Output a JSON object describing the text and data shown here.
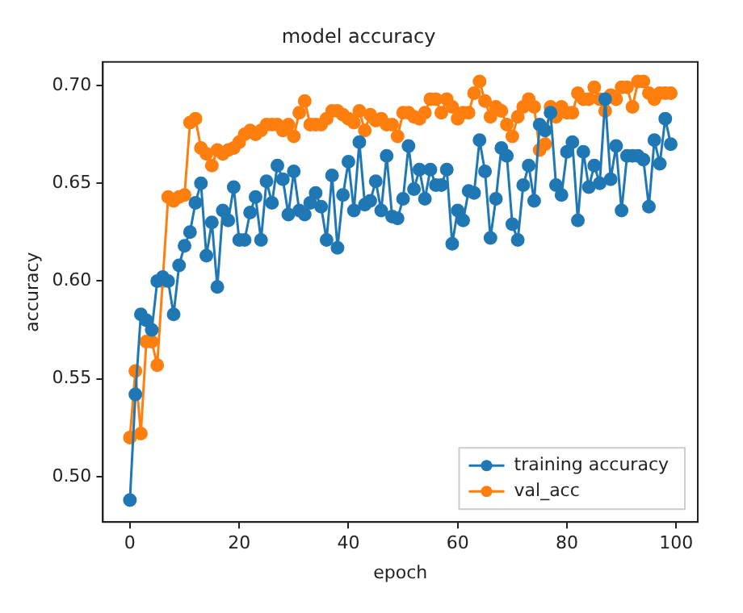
{
  "chart_data": {
    "type": "line",
    "title": "model accuracy",
    "xlabel": "epoch",
    "ylabel": "accuracy",
    "x": [
      0,
      1,
      2,
      3,
      4,
      5,
      6,
      7,
      8,
      9,
      10,
      11,
      12,
      13,
      14,
      15,
      16,
      17,
      18,
      19,
      20,
      21,
      22,
      23,
      24,
      25,
      26,
      27,
      28,
      29,
      30,
      31,
      32,
      33,
      34,
      35,
      36,
      37,
      38,
      39,
      40,
      41,
      42,
      43,
      44,
      45,
      46,
      47,
      48,
      49,
      50,
      51,
      52,
      53,
      54,
      55,
      56,
      57,
      58,
      59,
      60,
      61,
      62,
      63,
      64,
      65,
      66,
      67,
      68,
      69,
      70,
      71,
      72,
      73,
      74,
      75,
      76,
      77,
      78,
      79,
      80,
      81,
      82,
      83,
      84,
      85,
      86,
      87,
      88,
      89,
      90,
      91,
      92,
      93,
      94,
      95,
      96,
      97,
      98,
      99
    ],
    "series": [
      {
        "name": "training accuracy",
        "color": "#1f77b4",
        "values": [
          0.488,
          0.542,
          0.583,
          0.58,
          0.575,
          0.6,
          0.602,
          0.6,
          0.583,
          0.608,
          0.618,
          0.625,
          0.64,
          0.65,
          0.613,
          0.63,
          0.597,
          0.636,
          0.631,
          0.648,
          0.621,
          0.621,
          0.635,
          0.643,
          0.621,
          0.651,
          0.64,
          0.659,
          0.652,
          0.634,
          0.656,
          0.636,
          0.634,
          0.64,
          0.645,
          0.638,
          0.621,
          0.654,
          0.617,
          0.644,
          0.661,
          0.636,
          0.671,
          0.639,
          0.641,
          0.651,
          0.636,
          0.664,
          0.633,
          0.632,
          0.642,
          0.669,
          0.647,
          0.657,
          0.642,
          0.657,
          0.649,
          0.649,
          0.657,
          0.619,
          0.636,
          0.631,
          0.646,
          0.645,
          0.672,
          0.656,
          0.622,
          0.642,
          0.668,
          0.664,
          0.629,
          0.621,
          0.649,
          0.659,
          0.641,
          0.68,
          0.677,
          0.686,
          0.649,
          0.644,
          0.666,
          0.671,
          0.631,
          0.666,
          0.648,
          0.659,
          0.65,
          0.693,
          0.652,
          0.669,
          0.636,
          0.664,
          0.664,
          0.664,
          0.662,
          0.638,
          0.672,
          0.66,
          0.683,
          0.67
        ]
      },
      {
        "name": "val_acc",
        "color": "#ff7f0e",
        "values": [
          0.52,
          0.554,
          0.522,
          0.569,
          0.569,
          0.557,
          0.6,
          0.643,
          0.641,
          0.643,
          0.644,
          0.681,
          0.683,
          0.668,
          0.665,
          0.659,
          0.667,
          0.665,
          0.667,
          0.668,
          0.671,
          0.675,
          0.677,
          0.675,
          0.677,
          0.68,
          0.68,
          0.68,
          0.677,
          0.68,
          0.674,
          0.686,
          0.692,
          0.68,
          0.68,
          0.68,
          0.683,
          0.687,
          0.687,
          0.685,
          0.683,
          0.681,
          0.687,
          0.677,
          0.685,
          0.682,
          0.683,
          0.68,
          0.68,
          0.674,
          0.686,
          0.686,
          0.684,
          0.683,
          0.686,
          0.693,
          0.693,
          0.686,
          0.693,
          0.689,
          0.683,
          0.686,
          0.686,
          0.696,
          0.702,
          0.692,
          0.684,
          0.689,
          0.687,
          0.68,
          0.674,
          0.684,
          0.689,
          0.693,
          0.689,
          0.667,
          0.67,
          0.689,
          0.684,
          0.689,
          0.686,
          0.686,
          0.696,
          0.693,
          0.693,
          0.699,
          0.693,
          0.687,
          0.695,
          0.693,
          0.699,
          0.699,
          0.689,
          0.702,
          0.702,
          0.696,
          0.693,
          0.696,
          0.696,
          0.696
        ]
      }
    ],
    "xlim": [
      -4.95,
      103.95
    ],
    "xticks": [
      0,
      20,
      40,
      60,
      80,
      100
    ],
    "ylim": [
      0.4768,
      0.712
    ],
    "yticks": [
      {
        "value": 0.5,
        "label": "0.50"
      },
      {
        "value": 0.55,
        "label": "0.55"
      },
      {
        "value": 0.6,
        "label": "0.60"
      },
      {
        "value": 0.65,
        "label": "0.65"
      },
      {
        "value": 0.7,
        "label": "0.70"
      }
    ],
    "grid": false,
    "legend": "bottom right",
    "marker": "circle",
    "line_style": "solid"
  }
}
